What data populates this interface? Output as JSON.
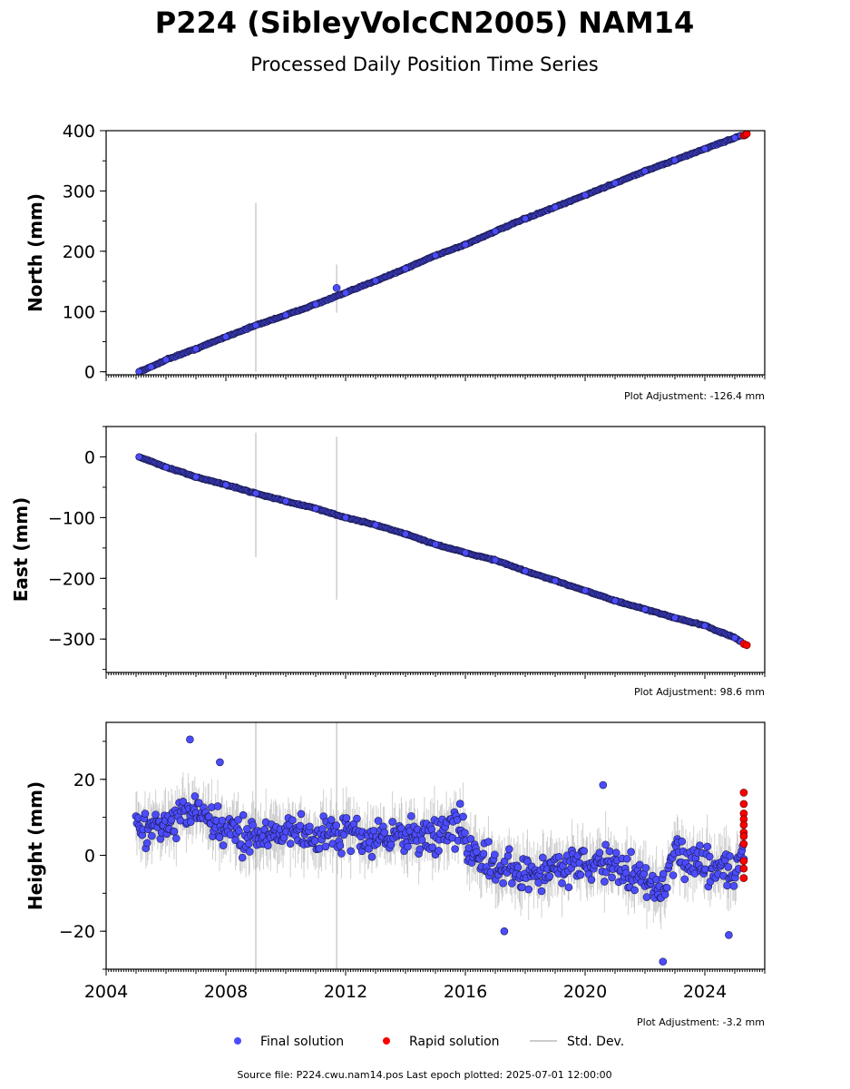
{
  "figure": {
    "title": "P224 (SibleyVolcCN2005) NAM14",
    "subtitle": "Processed Daily Position Time Series",
    "source": "Source file: P224.cwu.nam14.pos  Last epoch plotted: 2025-07-01 12:00:00",
    "legend": [
      {
        "label": "Final solution",
        "color": "#4c4cff",
        "marker": "circle"
      },
      {
        "label": "Rapid solution",
        "color": "#ff0000",
        "marker": "circle"
      },
      {
        "label": "Std. Dev.",
        "color": "#cccccc",
        "marker": "line"
      }
    ]
  },
  "chart_data": [
    {
      "type": "scatter",
      "ylabel": "North (mm)",
      "adjustment": "Plot Adjustment: -126.4 mm",
      "xlim": [
        2004.0,
        2026.0
      ],
      "ylim": [
        -5,
        400
      ],
      "yticks": [
        0,
        100,
        200,
        300,
        400
      ],
      "ytick_labels": [
        "0",
        "100",
        "200",
        "300",
        "400"
      ],
      "series": [
        {
          "kind": "final",
          "x": [
            2005.1,
            2005.5,
            2006.0,
            2007.0,
            2008.0,
            2009.0,
            2010.0,
            2011.0,
            2012.0,
            2013.0,
            2014.0,
            2015.0,
            2016.0,
            2017.0,
            2018.0,
            2019.0,
            2020.0,
            2021.0,
            2022.0,
            2023.0,
            2024.0,
            2025.0,
            2025.2
          ],
          "y": [
            0,
            8,
            20,
            38,
            58,
            77,
            94,
            112,
            131,
            151,
            171,
            193,
            211,
            233,
            254,
            273,
            293,
            313,
            333,
            351,
            370,
            388,
            392
          ]
        },
        {
          "kind": "rapid",
          "x": [
            2025.3,
            2025.35,
            2025.4
          ],
          "y": [
            392,
            393,
            395
          ]
        },
        {
          "kind": "outlier",
          "x": [
            2011.7
          ],
          "y": [
            139
          ]
        }
      ],
      "errorbars": [
        {
          "x": 2009.0,
          "low": 0,
          "high": 280
        },
        {
          "x": 2011.7,
          "low": 98,
          "high": 178
        }
      ]
    },
    {
      "type": "scatter",
      "ylabel": "East (mm)",
      "adjustment": "Plot Adjustment: 98.6 mm",
      "xlim": [
        2004.0,
        2026.0
      ],
      "ylim": [
        -355,
        50
      ],
      "yticks": [
        0,
        -100,
        -200,
        -300
      ],
      "ytick_labels": [
        "0",
        "−100",
        "−200",
        "−300"
      ],
      "series": [
        {
          "kind": "final",
          "x": [
            2005.1,
            2006.0,
            2007.0,
            2008.0,
            2009.0,
            2010.0,
            2011.0,
            2012.0,
            2013.0,
            2014.0,
            2015.0,
            2016.0,
            2017.0,
            2018.0,
            2019.0,
            2020.0,
            2021.0,
            2022.0,
            2023.0,
            2024.0,
            2025.0,
            2025.2
          ],
          "y": [
            0,
            -17,
            -33,
            -46,
            -60,
            -73,
            -85,
            -100,
            -112,
            -127,
            -144,
            -158,
            -170,
            -188,
            -204,
            -220,
            -237,
            -251,
            -265,
            -278,
            -298,
            -304
          ]
        },
        {
          "kind": "rapid",
          "x": [
            2025.3,
            2025.4
          ],
          "y": [
            -308,
            -310
          ]
        }
      ],
      "errorbars": [
        {
          "x": 2009.0,
          "low": -165,
          "high": 40
        },
        {
          "x": 2011.7,
          "low": -235,
          "high": 33
        }
      ]
    },
    {
      "type": "scatter",
      "ylabel": "Height (mm)",
      "adjustment": "Plot Adjustment: -3.2 mm",
      "xlim": [
        2004.0,
        2026.0
      ],
      "ylim": [
        -30,
        35
      ],
      "xticks": [
        2004,
        2008,
        2012,
        2016,
        2020,
        2024
      ],
      "xtick_labels": [
        "2004",
        "2008",
        "2012",
        "2016",
        "2020",
        "2024"
      ],
      "yticks": [
        20,
        0,
        -20
      ],
      "ytick_labels": [
        "20",
        "0",
        "−20"
      ],
      "series": [
        {
          "kind": "final",
          "trend_x": [
            2005.0,
            2006.0,
            2006.8,
            2008.0,
            2009.0,
            2010.0,
            2011.0,
            2012.0,
            2013.0,
            2014.0,
            2015.0,
            2015.8,
            2016.1,
            2017.0,
            2018.0,
            2019.0,
            2020.0,
            2021.0,
            2022.0,
            2022.5,
            2023.0,
            2024.0,
            2025.0,
            2025.3
          ],
          "trend_y": [
            8,
            7,
            12,
            6,
            5,
            7,
            5,
            6,
            4,
            6,
            5,
            8,
            2,
            -4,
            -5,
            -3,
            -2,
            -3,
            -6,
            -10,
            0,
            -2,
            -4,
            0
          ],
          "spread": 7,
          "extremes": [
            {
              "x": 2006.8,
              "y": 30.5
            },
            {
              "x": 2007.8,
              "y": 24.5
            },
            {
              "x": 2022.6,
              "y": -28
            },
            {
              "x": 2017.3,
              "y": -20
            },
            {
              "x": 2020.6,
              "y": 18.5
            },
            {
              "x": 2024.8,
              "y": -21
            }
          ]
        },
        {
          "kind": "rapid",
          "x": [
            2025.3,
            2025.3,
            2025.3,
            2025.3,
            2025.3,
            2025.3,
            2025.3,
            2025.3,
            2025.3,
            2025.3,
            2025.3
          ],
          "y": [
            16.5,
            13.5,
            11,
            9.5,
            8,
            6,
            3,
            -1.5,
            -3.5,
            -6,
            5
          ]
        }
      ],
      "errorbars": [
        {
          "x": 2009.0,
          "low": -30,
          "high": 35
        },
        {
          "x": 2011.7,
          "low": -30,
          "high": 35
        }
      ]
    }
  ]
}
